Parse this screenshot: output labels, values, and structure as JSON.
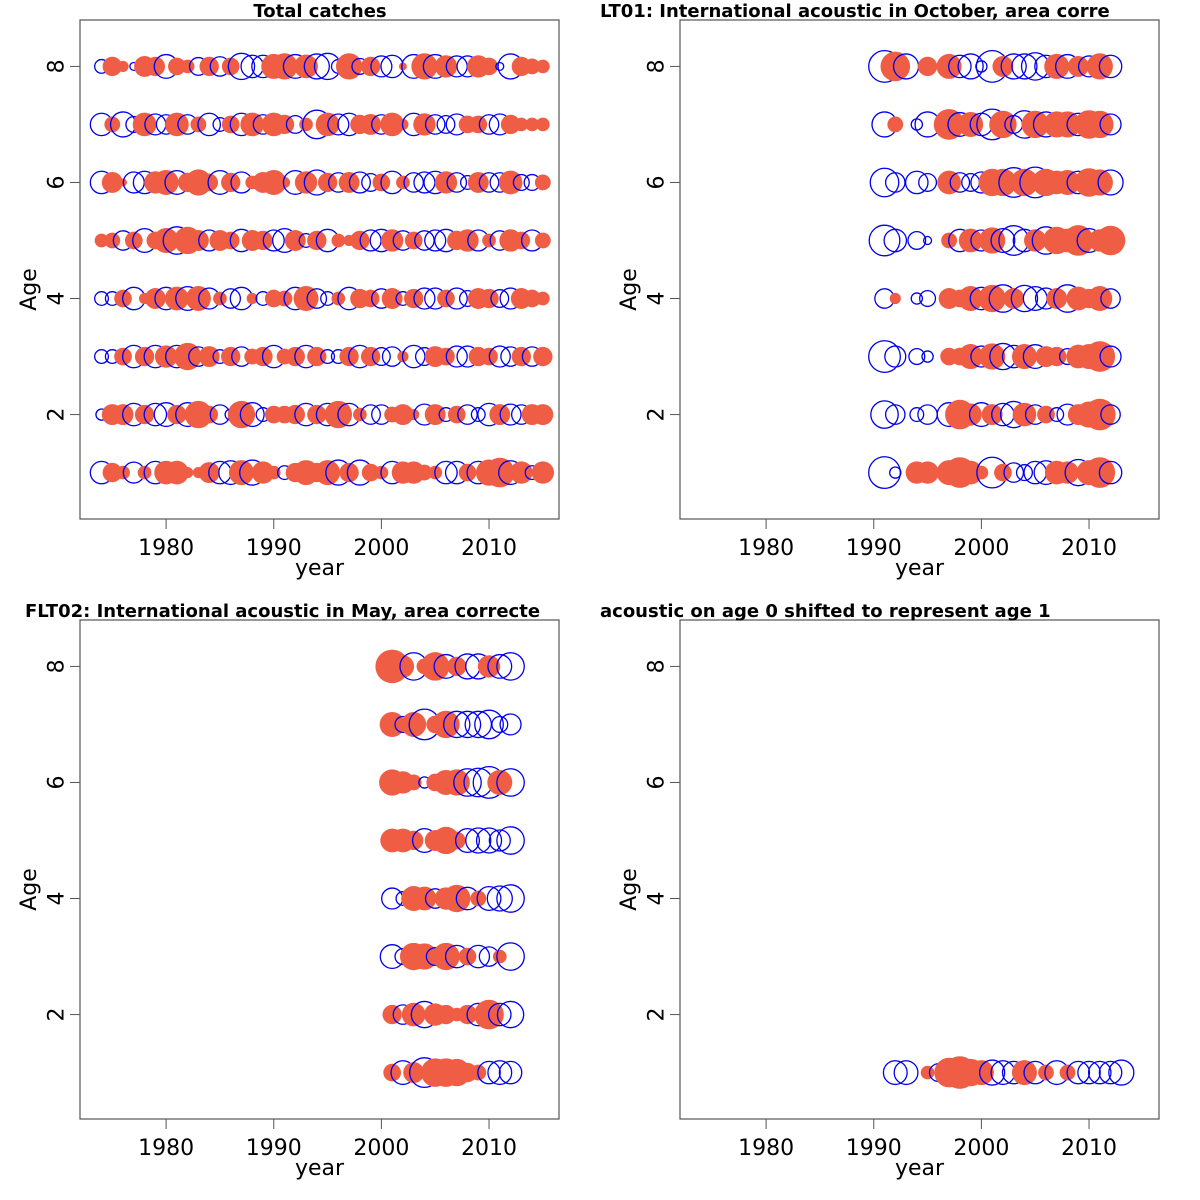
{
  "chart_data": [
    {
      "type": "scatter",
      "title": "Total catches",
      "xlabel": "year",
      "ylabel": "Age",
      "xticks": [
        "1980",
        "1990",
        "2000",
        "2010"
      ],
      "yticks": [
        "2",
        "4",
        "6",
        "8"
      ],
      "xlim": [
        1972,
        2016.5
      ],
      "ylim": [
        0.2,
        8.8
      ],
      "first_year": 1974,
      "residuals": {
        "8": [
          -0.3,
          0.6,
          0.2,
          -0.1,
          0.7,
          0.6,
          -0.9,
          0.5,
          0.3,
          -0.5,
          0.6,
          -0.6,
          0.5,
          -1.1,
          -0.8,
          -0.8,
          1.0,
          1.1,
          -0.9,
          0.9,
          -1.0,
          -1.1,
          -0.3,
          1.1,
          -0.4,
          0.6,
          -0.7,
          -0.8,
          0.1,
          -0.9,
          1.1,
          -0.9,
          0.8,
          -0.7,
          -0.7,
          0.8,
          0.5,
          -0.1,
          -1.0,
          0.6,
          0.4,
          0.3
        ],
        "7": [
          -0.8,
          0.4,
          -1.0,
          -0.4,
          0.9,
          -0.7,
          -0.6,
          0.9,
          -0.6,
          0.4,
          -0.8,
          -0.3,
          0.5,
          -0.8,
          0.9,
          -0.6,
          0.9,
          0.6,
          -0.5,
          0.3,
          -1.3,
          0.9,
          -0.7,
          -0.8,
          0.6,
          0.7,
          -0.6,
          0.9,
          0.2,
          -0.8,
          0.8,
          -0.6,
          -0.5,
          -0.7,
          0.5,
          0.5,
          -0.6,
          -0.7,
          0.6,
          0.3,
          0.3,
          0.3
        ],
        "6": [
          -0.8,
          0.7,
          0.1,
          -0.7,
          -0.8,
          0.8,
          1.0,
          -0.9,
          0.6,
          1.1,
          0.5,
          -0.9,
          0.6,
          -0.7,
          0.3,
          0.7,
          1.0,
          0.2,
          -0.9,
          0.8,
          -1.0,
          0.6,
          -0.6,
          0.7,
          -0.7,
          -0.5,
          0.5,
          -0.8,
          0.3,
          -0.6,
          -0.7,
          -0.8,
          0.8,
          -0.6,
          -0.3,
          0.7,
          -0.6,
          -0.6,
          0.9,
          -0.4,
          -0.4,
          0.4
        ],
        "5": [
          0.3,
          0.4,
          -0.6,
          0.5,
          -0.9,
          0.5,
          1.0,
          -1.2,
          1.2,
          0.7,
          -0.7,
          0.7,
          0.5,
          -0.8,
          0.7,
          0.6,
          -0.7,
          -0.9,
          0.7,
          -0.3,
          0.6,
          -0.8,
          0.3,
          0.2,
          0.6,
          -0.7,
          -0.8,
          0.8,
          -0.6,
          0.5,
          -0.6,
          -0.7,
          -0.8,
          0.6,
          0.8,
          -0.7,
          0.3,
          -0.6,
          0.8,
          0.5,
          -0.7,
          0.4
        ],
        "4": [
          -0.3,
          -0.3,
          0.5,
          -0.8,
          0.2,
          0.7,
          -0.8,
          0.9,
          -0.9,
          1.0,
          -0.7,
          0.3,
          -0.6,
          -0.8,
          0.2,
          -0.3,
          0.5,
          0.4,
          -0.8,
          1.0,
          -0.6,
          -0.3,
          0.3,
          -0.8,
          0.6,
          0.5,
          -0.6,
          0.7,
          -0.3,
          0.6,
          -0.7,
          -0.7,
          0.5,
          -0.7,
          -0.4,
          0.7,
          0.6,
          -0.5,
          -0.7,
          0.7,
          0.5,
          0.3
        ],
        "3": [
          -0.3,
          -0.3,
          0.5,
          -0.8,
          0.6,
          -0.8,
          0.8,
          -0.8,
          1.2,
          -0.6,
          0.7,
          -0.3,
          0.6,
          -0.6,
          0.4,
          0.6,
          -0.8,
          0.4,
          0.6,
          -0.8,
          0.6,
          -0.3,
          -0.3,
          0.6,
          -0.8,
          0.6,
          -0.5,
          -0.6,
          0.2,
          -0.8,
          -0.5,
          0.7,
          0.5,
          -0.7,
          -0.7,
          0.6,
          0.5,
          -0.7,
          -0.6,
          0.6,
          -0.6,
          0.6
        ],
        "2": [
          -0.2,
          0.7,
          0.7,
          -0.8,
          0.6,
          -0.8,
          -0.9,
          0.6,
          -0.9,
          1.2,
          0.5,
          -0.6,
          -0.2,
          1.2,
          -0.9,
          -0.3,
          0.5,
          0.5,
          0.6,
          -0.8,
          0.6,
          -0.8,
          1.2,
          -0.8,
          0.3,
          -0.6,
          -0.6,
          0.4,
          0.7,
          0.2,
          -0.7,
          0.7,
          -0.3,
          0.5,
          -0.6,
          -0.3,
          -0.8,
          0.7,
          -0.7,
          -0.6,
          0.7,
          0.7
        ],
        "1": [
          -0.8,
          0.6,
          0.3,
          -0.7,
          0.3,
          -0.8,
          0.9,
          0.9,
          0.2,
          0.2,
          0.7,
          -0.8,
          -0.9,
          1.0,
          -1.0,
          0.8,
          0.3,
          -0.3,
          0.6,
          1.0,
          0.6,
          1.0,
          -1.0,
          0.6,
          -1.0,
          0.5,
          0.3,
          -0.8,
          0.8,
          0.8,
          0.4,
          0.3,
          -0.8,
          -0.8,
          0.5,
          -0.8,
          1.1,
          1.4,
          -0.9,
          0.8,
          -0.3,
          0.8
        ]
      }
    },
    {
      "type": "scatter",
      "title": "LT01:     International acoustic in October, area corre",
      "xlabel": "year",
      "ylabel": "Age",
      "xticks": [
        "1980",
        "1990",
        "2000",
        "2010"
      ],
      "yticks": [
        "2",
        "4",
        "6",
        "8"
      ],
      "xlim": [
        1972,
        2016.5
      ],
      "ylim": [
        0.2,
        8.8
      ],
      "first_year": 1991,
      "residuals": {
        "8": [
          -1.6,
          1.4,
          -1.0,
          null,
          0.6,
          null,
          1.0,
          -0.8,
          -1.0,
          -0.2,
          -1.6,
          0.7,
          -1.0,
          -1.0,
          -1.2,
          -0.8,
          1.0,
          -0.9,
          0.7,
          -0.7,
          1.1,
          -0.8
        ],
        "7": [
          -1.0,
          0.4,
          null,
          -0.2,
          -1.0,
          null,
          1.5,
          -0.9,
          1.0,
          -0.8,
          -1.5,
          1.2,
          -0.5,
          -1.2,
          1.2,
          -1.0,
          1.1,
          1.1,
          -0.8,
          1.3,
          1.2,
          -0.7
        ],
        "6": [
          -1.3,
          -0.6,
          null,
          -0.8,
          -0.5,
          null,
          0.9,
          -0.6,
          -0.5,
          -0.7,
          1.2,
          1.2,
          -1.4,
          1.2,
          -1.5,
          1.2,
          0.9,
          1.0,
          -0.8,
          1.3,
          1.1,
          -1.0
        ],
        "5": [
          -1.5,
          -0.8,
          null,
          -0.5,
          -0.1,
          null,
          0.4,
          -0.8,
          0.9,
          -0.7,
          1.1,
          -0.9,
          -1.4,
          -0.8,
          0.8,
          -1.2,
          1.2,
          0.9,
          1.5,
          -0.9,
          0.8,
          1.4
        ],
        "4": [
          -0.6,
          0.2,
          null,
          -0.2,
          -0.4,
          null,
          0.7,
          0.5,
          1.0,
          -0.8,
          1.2,
          -1.2,
          0.7,
          -1.1,
          -0.9,
          -0.7,
          0.7,
          -1.2,
          0.9,
          0.6,
          1.0,
          -0.6
        ],
        "3": [
          -1.6,
          -0.7,
          null,
          -0.4,
          -0.2,
          null,
          0.5,
          0.5,
          1.0,
          -0.7,
          1.1,
          -1.1,
          -0.8,
          1.0,
          -0.9,
          0.7,
          0.6,
          -0.4,
          0.9,
          1.0,
          1.5,
          -0.7
        ],
        "2": [
          -1.2,
          -0.6,
          null,
          -0.3,
          -0.6,
          null,
          -0.9,
          1.4,
          0.8,
          -0.9,
          0.7,
          -0.8,
          -1.1,
          0.9,
          -0.6,
          0.5,
          -0.3,
          -0.7,
          0.7,
          1.1,
          1.6,
          -0.6
        ],
        "1": [
          -1.6,
          -0.2,
          null,
          0.8,
          0.8,
          null,
          1.0,
          1.5,
          0.9,
          0.3,
          -1.5,
          0.5,
          -0.6,
          -0.4,
          -0.8,
          -0.9,
          0.9,
          0.8,
          -1.1,
          1.0,
          1.5,
          -0.8
        ]
      }
    },
    {
      "type": "scatter",
      "title": "FLT02: International acoustic in May, area correcte",
      "xlabel": "year",
      "ylabel": "Age",
      "xticks": [
        "1980",
        "1990",
        "2000",
        "2010"
      ],
      "yticks": [
        "2",
        "4",
        "6",
        "8"
      ],
      "xlim": [
        1972,
        2016.5
      ],
      "ylim": [
        0.2,
        8.8
      ],
      "first_year": 2001,
      "residuals": {
        "8": [
          1.8,
          0.8,
          -1.2,
          0.4,
          1.3,
          -0.9,
          0.6,
          -1.0,
          -1.0,
          0.8,
          -0.9,
          -1.2
        ],
        "7": [
          1.0,
          -0.4,
          1.0,
          -1.5,
          0.5,
          1.2,
          -1.1,
          -1.1,
          -1.1,
          -1.3,
          -0.4,
          -0.7
        ],
        "6": [
          1.1,
          0.8,
          0.4,
          -0.2,
          0.5,
          1.0,
          1.1,
          -1.2,
          -1.3,
          -1.6,
          1.0,
          -1.2
        ],
        "5": [
          0.9,
          0.9,
          0.6,
          -0.9,
          0.7,
          1.2,
          0.5,
          -0.9,
          -1.0,
          -1.0,
          -0.7,
          -1.2
        ],
        "4": [
          -0.7,
          -0.3,
          1.0,
          0.9,
          -0.6,
          0.8,
          1.2,
          -0.8,
          0.4,
          -0.9,
          -1.0,
          -1.2
        ],
        "3": [
          -0.9,
          -0.4,
          1.2,
          1.1,
          -0.5,
          1.2,
          -0.8,
          0.5,
          -0.8,
          -0.6,
          0.3,
          -1.2
        ],
        "2": [
          0.6,
          -0.6,
          0.9,
          -1.1,
          0.8,
          0.6,
          0.3,
          0.6,
          -0.8,
          1.4,
          -0.8,
          -1.1
        ],
        "1": [
          0.5,
          -0.9,
          0.7,
          -1.4,
          1.3,
          1.3,
          1.2,
          0.6,
          0.4,
          -0.8,
          -0.9,
          -0.8
        ]
      }
    },
    {
      "type": "scatter",
      "title": "acoustic on age 0 shifted to represent age 1",
      "xlabel": "year",
      "ylabel": "Age",
      "xticks": [
        "1980",
        "1990",
        "2000",
        "2010"
      ],
      "yticks": [
        "2",
        "4",
        "6",
        "8"
      ],
      "xlim": [
        1972,
        2016.5
      ],
      "ylim": [
        0.2,
        8.8
      ],
      "first_year": 1992,
      "residuals": {
        "1": [
          -0.9,
          -0.9,
          null,
          0.3,
          -0.5,
          1.4,
          1.7,
          1.2,
          1.0,
          -1.0,
          -0.9,
          -0.8,
          1.0,
          -0.8,
          0.4,
          -0.9,
          0.4,
          -0.8,
          -0.8,
          -0.8,
          -0.8,
          -1.0
        ]
      }
    }
  ],
  "colors": {
    "positive": "#EF5D45",
    "negative": "#0000EE",
    "axis": "#555555"
  }
}
